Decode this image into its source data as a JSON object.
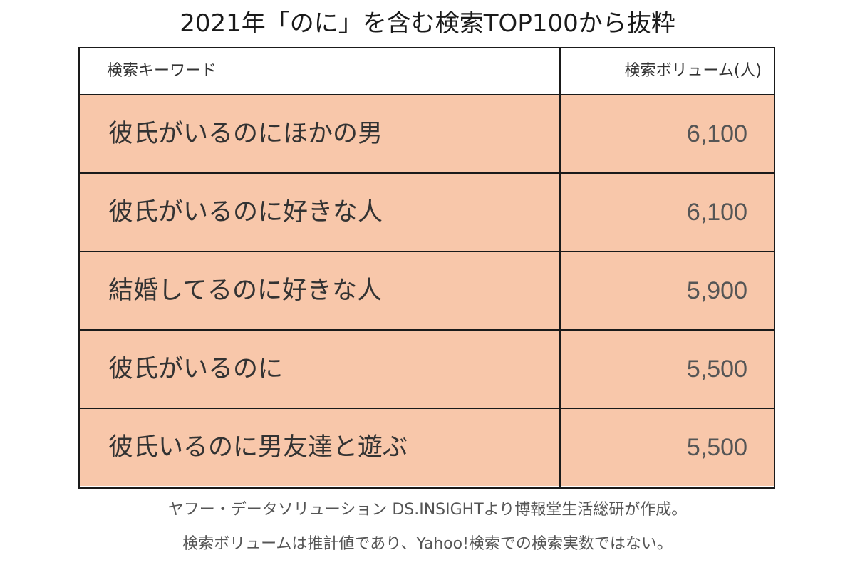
{
  "title": "2021年「のに」を含む検索TOP100から抜粋",
  "chart_data": {
    "type": "table",
    "title": "2021年「のに」を含む検索TOP100から抜粋",
    "columns": [
      "検索キーワード",
      "検索ボリューム(人)"
    ],
    "rows": [
      {
        "keyword": "彼氏がいるのにほかの男",
        "volume": "6,100"
      },
      {
        "keyword": "彼氏がいるのに好きな人",
        "volume": "6,100"
      },
      {
        "keyword": "結婚してるのに好きな人",
        "volume": "5,900"
      },
      {
        "keyword": "彼氏がいるのに",
        "volume": "5,500"
      },
      {
        "keyword": "彼氏いるのに男友達と遊ぶ",
        "volume": "5,500"
      }
    ],
    "values": [
      6100,
      6100,
      5900,
      5500,
      5500
    ]
  },
  "notes": [
    "ヤフー・データソリューション DS.INSIGHTより博報堂生活総研が作成。",
    "検索ボリュームは推計値であり、Yahoo!検索での検索実数ではない。"
  ],
  "colors": {
    "row_fill": "#f8c7aa",
    "border": "#1a1a1a"
  }
}
